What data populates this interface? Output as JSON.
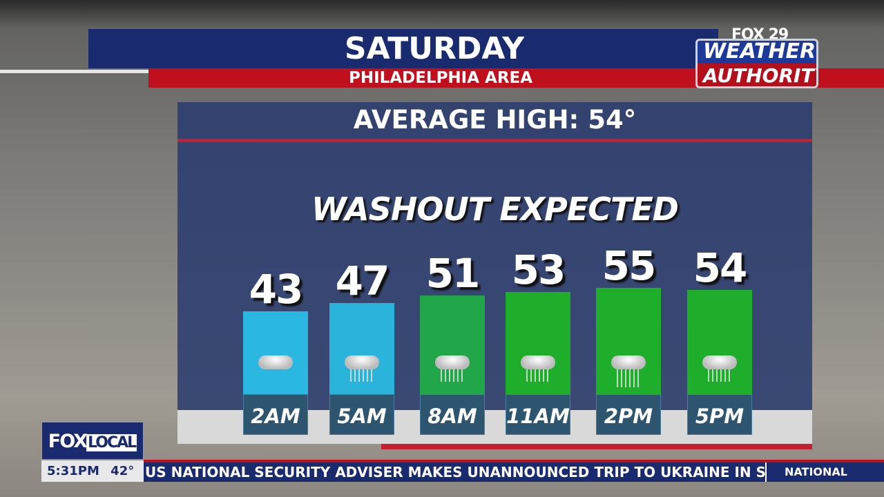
{
  "header": {
    "title": "SATURDAY",
    "subtitle": "PHILADELPHIA AREA"
  },
  "logo": {
    "line1": "FOX 29",
    "line2": "WEATHER",
    "line3": "AUTHORITY"
  },
  "panel": {
    "average_high": "AVERAGE HIGH: 54°",
    "headline": "WASHOUT EXPECTED"
  },
  "chart_data": {
    "type": "bar",
    "categories": [
      "2AM",
      "5AM",
      "8AM",
      "11AM",
      "2PM",
      "5PM"
    ],
    "values": [
      43,
      47,
      51,
      53,
      55,
      54
    ],
    "value_labels": [
      "43",
      "47",
      "51",
      "53",
      "55",
      "54"
    ],
    "bar_colors": [
      "#2ab8e2",
      "#2ab4dc",
      "#22a64a",
      "#1fae2c",
      "#1fae2c",
      "#1fae2c"
    ],
    "icons": [
      "cloud-icon",
      "cloud-rain-icon",
      "cloud-rain-icon",
      "cloud-rain-icon",
      "cloud-heavy-rain-icon",
      "cloud-rain-icon"
    ]
  },
  "bottom": {
    "station": "FOX",
    "station_sub": "LOCAL",
    "time": "5:31PM",
    "temp": "42°",
    "ticker": "US NATIONAL SECURITY ADVISER MAKES UNANNOUNCED TRIP TO UKRAINE IN SH",
    "ticker_category": "NATIONAL"
  }
}
